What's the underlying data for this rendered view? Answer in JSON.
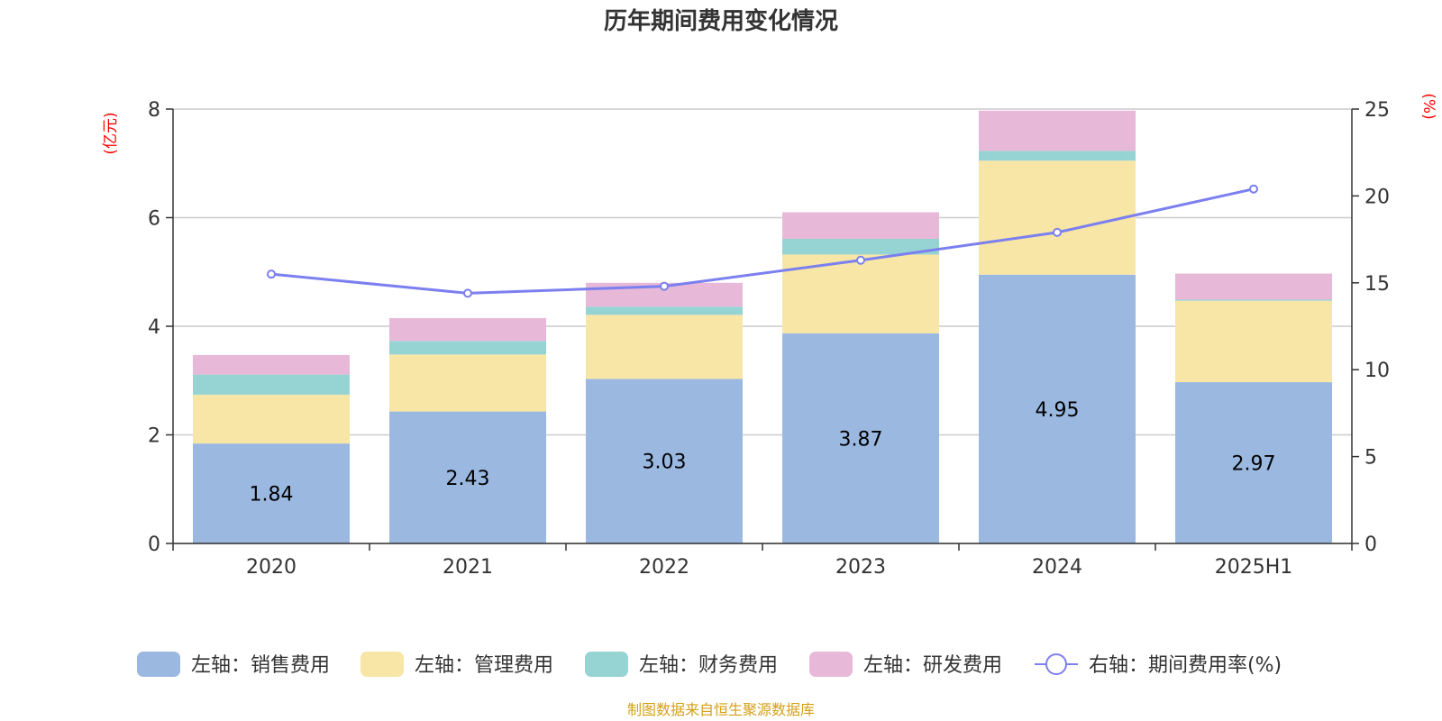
{
  "chart_data": {
    "type": "bar",
    "stacked": true,
    "title": "历年期间费用变化情况",
    "categories": [
      "2020",
      "2021",
      "2022",
      "2023",
      "2024",
      "2025H1"
    ],
    "left_axis": {
      "unit_label": "(亿元)",
      "ylim": [
        0,
        8
      ],
      "ticks": [
        "0",
        "2",
        "4",
        "6",
        "8"
      ]
    },
    "right_axis": {
      "unit_label": "(%)",
      "ylim": [
        0,
        25
      ],
      "ticks": [
        "0",
        "5",
        "10",
        "15",
        "20",
        "25"
      ]
    },
    "grid": true,
    "legend_position": "bottom",
    "series": [
      {
        "name": "左轴：销售费用",
        "type": "bar",
        "axis": "left",
        "color": "#9bb8e1",
        "values": [
          1.84,
          2.43,
          3.03,
          3.87,
          4.95,
          2.97
        ],
        "labels": [
          "1.84",
          "2.43",
          "3.03",
          "3.87",
          "4.95",
          "2.97"
        ]
      },
      {
        "name": "左轴：管理费用",
        "type": "bar",
        "axis": "left",
        "color": "#f7e6a6",
        "values": [
          0.9,
          1.05,
          1.18,
          1.45,
          2.1,
          1.5
        ]
      },
      {
        "name": "左轴：财务费用",
        "type": "bar",
        "axis": "left",
        "color": "#96d3d3",
        "values": [
          0.37,
          0.25,
          0.15,
          0.29,
          0.18,
          0.02
        ]
      },
      {
        "name": "左轴：研发费用",
        "type": "bar",
        "axis": "left",
        "color": "#e7b8d8",
        "values": [
          0.36,
          0.42,
          0.44,
          0.49,
          0.74,
          0.48
        ]
      },
      {
        "name": "右轴：期间费用率(%)",
        "type": "line",
        "axis": "right",
        "color": "#7b7ff0",
        "values": [
          15.5,
          14.4,
          14.8,
          16.3,
          17.9,
          20.4
        ]
      }
    ]
  },
  "footer": {
    "source": "制图数据来自恒生聚源数据库"
  }
}
